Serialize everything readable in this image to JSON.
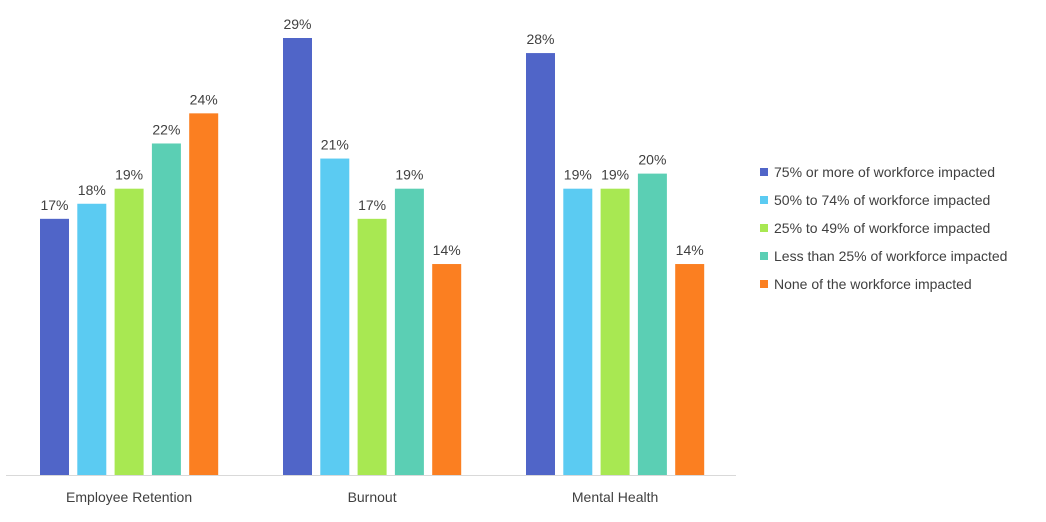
{
  "chart_data": {
    "type": "bar",
    "title": "",
    "xlabel": "",
    "ylabel": "",
    "ylim": [
      0,
      29
    ],
    "grid": false,
    "legend_position": "right",
    "categories": [
      "Employee Retention",
      "Burnout",
      "Mental Health"
    ],
    "series": [
      {
        "name": "75% or more of workforce impacted",
        "color": "#5065C8",
        "values": [
          17,
          29,
          28
        ],
        "labels": [
          "17%",
          "29%",
          "28%"
        ]
      },
      {
        "name": "50% to 74% of workforce impacted",
        "color": "#5BCBF2",
        "values": [
          18,
          21,
          19
        ],
        "labels": [
          "18%",
          "21%",
          "19%"
        ]
      },
      {
        "name": "25% to 49% of workforce impacted",
        "color": "#A8E852",
        "values": [
          19,
          17,
          19
        ],
        "labels": [
          "19%",
          "17%",
          "19%"
        ]
      },
      {
        "name": "Less than 25% of workforce impacted",
        "color": "#5BCFB4",
        "values": [
          22,
          19,
          20
        ],
        "labels": [
          "22%",
          "19%",
          "20%"
        ]
      },
      {
        "name": "None of the workforce impacted",
        "color": "#FB7F21",
        "values": [
          24,
          14,
          14
        ],
        "labels": [
          "24%",
          "14%",
          "14%"
        ]
      }
    ]
  }
}
